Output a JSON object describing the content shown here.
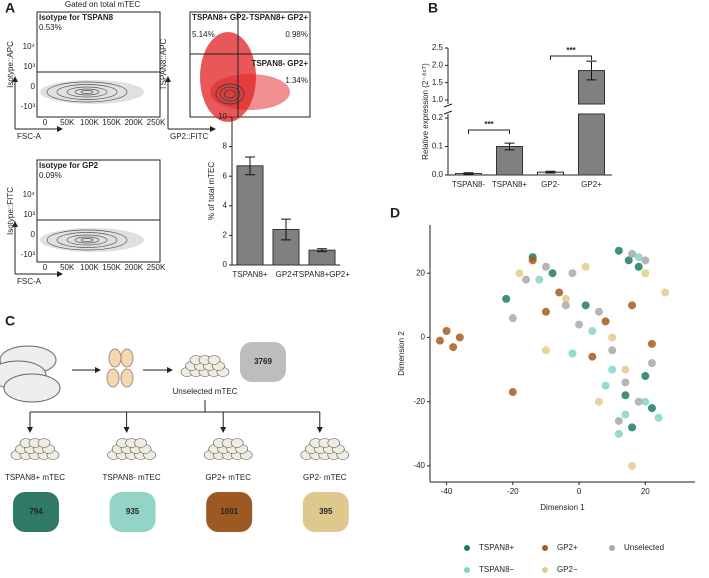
{
  "panels": [
    "A",
    "B",
    "C",
    "D"
  ],
  "flow": [
    {
      "header": "Gated on total mTEC",
      "gates": [
        {
          "label": "Isotype for TSPAN8",
          "pct": "0.53%"
        }
      ],
      "ylabel": "Isotype::APC",
      "xlabel": "FSC-A",
      "xticks": [
        "0",
        "50K",
        "100K",
        "150K",
        "200K",
        "250K"
      ],
      "yticks": [
        "10⁴",
        "10³",
        "0",
        "-10³"
      ]
    },
    {
      "gates": [
        {
          "label": "TSPAN8+ GP2-",
          "pct": "5.14%"
        },
        {
          "label": "TSPAN8+ GP2+",
          "pct": "0.98%"
        },
        {
          "label": "TSPAN8- GP2+",
          "pct": "1.34%"
        }
      ],
      "ylabel": "TSPAN8::APC",
      "xlabel": "GP2::FITC"
    },
    {
      "gates": [
        {
          "label": "Isotype for GP2",
          "pct": "0.09%"
        }
      ],
      "ylabel": "Isotype::FITC",
      "xlabel": "FSC-A",
      "xticks": [
        "0",
        "50K",
        "100K",
        "150K",
        "200K",
        "250K"
      ],
      "yticks": [
        "10⁴",
        "10³",
        "0",
        "-10³"
      ]
    }
  ],
  "chart_data": [
    {
      "type": "bar",
      "ylabel": "% of total mTEC",
      "categories": [
        "TSPAN8+",
        "GP2+",
        "TSPAN8+GP2+"
      ],
      "values": [
        6.7,
        2.4,
        1.0
      ],
      "errors": [
        0.6,
        0.7,
        0.1
      ],
      "color": "#808080",
      "ylim": [
        0,
        10
      ],
      "yticks": [
        0,
        2,
        4,
        6,
        8,
        10
      ]
    },
    {
      "type": "bar",
      "ylabel": "Relative expression (2⁻ᐞᶜᵀ)",
      "categories": [
        "TSPAN8-",
        "TSPAN8+",
        "GP2-",
        "GP2+"
      ],
      "values": [
        0.005,
        0.1,
        0.01,
        1.85
      ],
      "errors": [
        0.003,
        0.012,
        0.003,
        0.27
      ],
      "colors": [
        "#e8e8e8",
        "#808080",
        "#e8e8e8",
        "#808080"
      ],
      "ylim": [
        0,
        2.5
      ],
      "axis_break": [
        0.2,
        1.0
      ],
      "yticks": [
        {
          "value": 0,
          "label": "0.0"
        },
        0.1,
        0.2,
        {
          "value": 1,
          "label": "1.0"
        },
        1.5,
        {
          "value": 2,
          "label": "2.0"
        },
        2.5
      ],
      "annotations": [
        "***",
        "***"
      ]
    },
    {
      "type": "scatter",
      "xlabel": "Dimension 1",
      "ylabel": "Dimension 2",
      "xlim": [
        -45,
        35
      ],
      "ylim": [
        -45,
        35
      ],
      "xticks": [
        -40,
        -20,
        0,
        20
      ],
      "yticks": [
        -40,
        -20,
        0,
        20
      ],
      "series": [
        {
          "name": "TSPAN8+",
          "color": "#1f7a68",
          "x": [
            -14,
            -8,
            12,
            15,
            18,
            22,
            16,
            14,
            20,
            2,
            -22
          ],
          "y": [
            25,
            20,
            27,
            24,
            22,
            -22,
            -28,
            -18,
            -12,
            10,
            12
          ]
        },
        {
          "name": "TSPAN8−",
          "color": "#86d3c8",
          "x": [
            -12,
            10,
            14,
            20,
            24,
            8,
            -2,
            18,
            12,
            4
          ],
          "y": [
            18,
            -10,
            -24,
            -20,
            -25,
            -15,
            -5,
            25,
            -30,
            2
          ]
        },
        {
          "name": "GP2+",
          "color": "#a65c1e",
          "x": [
            -40,
            -38,
            -42,
            -36,
            -14,
            -10,
            -6,
            8,
            4,
            -20,
            16,
            22
          ],
          "y": [
            2,
            -3,
            -1,
            0,
            24,
            8,
            14,
            5,
            -6,
            -17,
            10,
            -2
          ]
        },
        {
          "name": "GP2−",
          "color": "#e1cd8a",
          "x": [
            -18,
            -4,
            2,
            10,
            14,
            20,
            6,
            26,
            -10,
            16
          ],
          "y": [
            20,
            12,
            22,
            0,
            -10,
            20,
            -20,
            14,
            -4,
            -40
          ]
        },
        {
          "name": "Unselected",
          "color": "#a9a9a9",
          "x": [
            -16,
            -10,
            -4,
            0,
            6,
            10,
            14,
            18,
            22,
            16,
            12,
            -20,
            -2,
            20
          ],
          "y": [
            18,
            22,
            10,
            4,
            8,
            -4,
            -14,
            -20,
            -8,
            26,
            -26,
            6,
            20,
            24
          ]
        }
      ]
    }
  ],
  "diagram": {
    "source": {
      "label": "Unselected mTEC",
      "count": "3769"
    },
    "subsets": [
      {
        "label": "TSPAN8+ mTEC",
        "count": "794",
        "color": "#2e7a66"
      },
      {
        "label": "TSPAN8- mTEC",
        "count": "935",
        "color": "#93d4c6"
      },
      {
        "label": "GP2+ mTEC",
        "count": "1001",
        "color": "#9c5a22"
      },
      {
        "label": "GP2- mTEC",
        "count": "395",
        "color": "#dec98c"
      }
    ]
  }
}
